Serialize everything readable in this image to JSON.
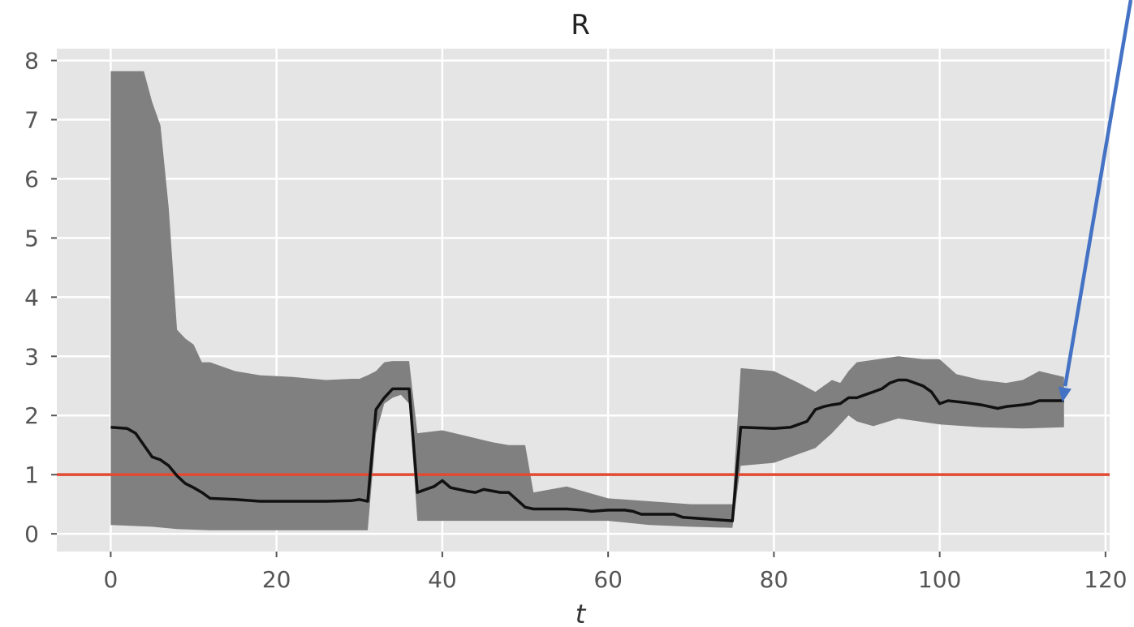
{
  "chart_data": {
    "type": "line",
    "title": "R",
    "xlabel": "t",
    "ylabel": "",
    "xlim": [
      -6.5,
      120.5
    ],
    "ylim": [
      -0.3,
      8.2
    ],
    "xticks": [
      0,
      20,
      40,
      60,
      80,
      100,
      120
    ],
    "yticks": [
      0,
      1,
      2,
      3,
      4,
      5,
      6,
      7,
      8
    ],
    "grid": true,
    "legend": "none",
    "colors": {
      "background": "#e5e5e5",
      "grid": "#ffffff",
      "band": "#808080",
      "median": "#111111",
      "threshold": "#e24a33",
      "arrow": "#4472c4"
    },
    "series": [
      {
        "role": "median",
        "x": [
          0,
          2,
          3,
          4,
          5,
          6,
          7,
          8,
          9,
          10,
          11,
          12,
          15,
          18,
          22,
          26,
          29,
          30,
          31,
          32,
          33,
          34,
          35,
          36,
          37,
          38,
          39,
          40,
          41,
          43,
          44,
          45,
          47,
          48,
          50,
          51,
          52,
          55,
          57,
          58,
          60,
          62,
          63,
          64,
          68,
          69,
          75,
          76,
          80,
          82,
          84,
          85,
          86,
          87,
          88,
          89,
          90,
          91,
          92,
          93,
          94,
          95,
          96,
          97,
          98,
          99,
          100,
          101,
          103,
          105,
          107,
          108,
          110,
          111,
          112,
          113,
          115
        ],
        "y": [
          1.8,
          1.78,
          1.7,
          1.5,
          1.3,
          1.25,
          1.15,
          0.98,
          0.85,
          0.78,
          0.7,
          0.6,
          0.58,
          0.55,
          0.55,
          0.55,
          0.56,
          0.58,
          0.55,
          2.1,
          2.3,
          2.45,
          2.45,
          2.45,
          0.7,
          0.75,
          0.8,
          0.9,
          0.78,
          0.72,
          0.7,
          0.75,
          0.7,
          0.7,
          0.45,
          0.42,
          0.42,
          0.42,
          0.4,
          0.38,
          0.4,
          0.4,
          0.38,
          0.33,
          0.33,
          0.28,
          0.22,
          1.8,
          1.78,
          1.8,
          1.9,
          2.1,
          2.15,
          2.18,
          2.2,
          2.3,
          2.3,
          2.35,
          2.4,
          2.45,
          2.55,
          2.6,
          2.6,
          2.55,
          2.5,
          2.4,
          2.2,
          2.25,
          2.22,
          2.18,
          2.12,
          2.15,
          2.18,
          2.2,
          2.25,
          2.25,
          2.25
        ]
      },
      {
        "role": "upper",
        "x": [
          0,
          4,
          5,
          6,
          7,
          8,
          9,
          10,
          11,
          12,
          15,
          18,
          22,
          26,
          29,
          30,
          31,
          32,
          33,
          34,
          35,
          36,
          37,
          40,
          43,
          46,
          48,
          50,
          51,
          55,
          60,
          65,
          70,
          75,
          76,
          80,
          83,
          85,
          86,
          87,
          88,
          89,
          90,
          95,
          98,
          100,
          102,
          105,
          108,
          110,
          112,
          115
        ],
        "y": [
          7.82,
          7.82,
          7.3,
          6.9,
          5.5,
          3.45,
          3.3,
          3.2,
          2.9,
          2.9,
          2.75,
          2.68,
          2.65,
          2.6,
          2.62,
          2.62,
          2.68,
          2.75,
          2.9,
          2.92,
          2.92,
          2.92,
          1.7,
          1.75,
          1.65,
          1.55,
          1.5,
          1.5,
          0.7,
          0.8,
          0.6,
          0.55,
          0.5,
          0.5,
          2.8,
          2.75,
          2.55,
          2.4,
          2.5,
          2.6,
          2.55,
          2.75,
          2.9,
          3.0,
          2.95,
          2.95,
          2.7,
          2.6,
          2.55,
          2.6,
          2.75,
          2.65
        ]
      },
      {
        "role": "lower",
        "x": [
          0,
          5,
          8,
          12,
          20,
          30,
          31,
          32,
          33,
          34,
          35,
          36,
          37,
          40,
          45,
          50,
          55,
          60,
          65,
          70,
          75,
          76,
          80,
          85,
          87,
          89,
          90,
          92,
          95,
          100,
          105,
          110,
          115
        ],
        "y": [
          0.15,
          0.12,
          0.08,
          0.06,
          0.06,
          0.06,
          0.06,
          1.7,
          2.2,
          2.3,
          2.35,
          2.2,
          0.22,
          0.22,
          0.22,
          0.22,
          0.22,
          0.22,
          0.15,
          0.12,
          0.1,
          1.15,
          1.2,
          1.45,
          1.7,
          2.0,
          1.9,
          1.82,
          1.95,
          1.85,
          1.8,
          1.78,
          1.8
        ]
      },
      {
        "role": "threshold",
        "y": 1
      }
    ]
  }
}
